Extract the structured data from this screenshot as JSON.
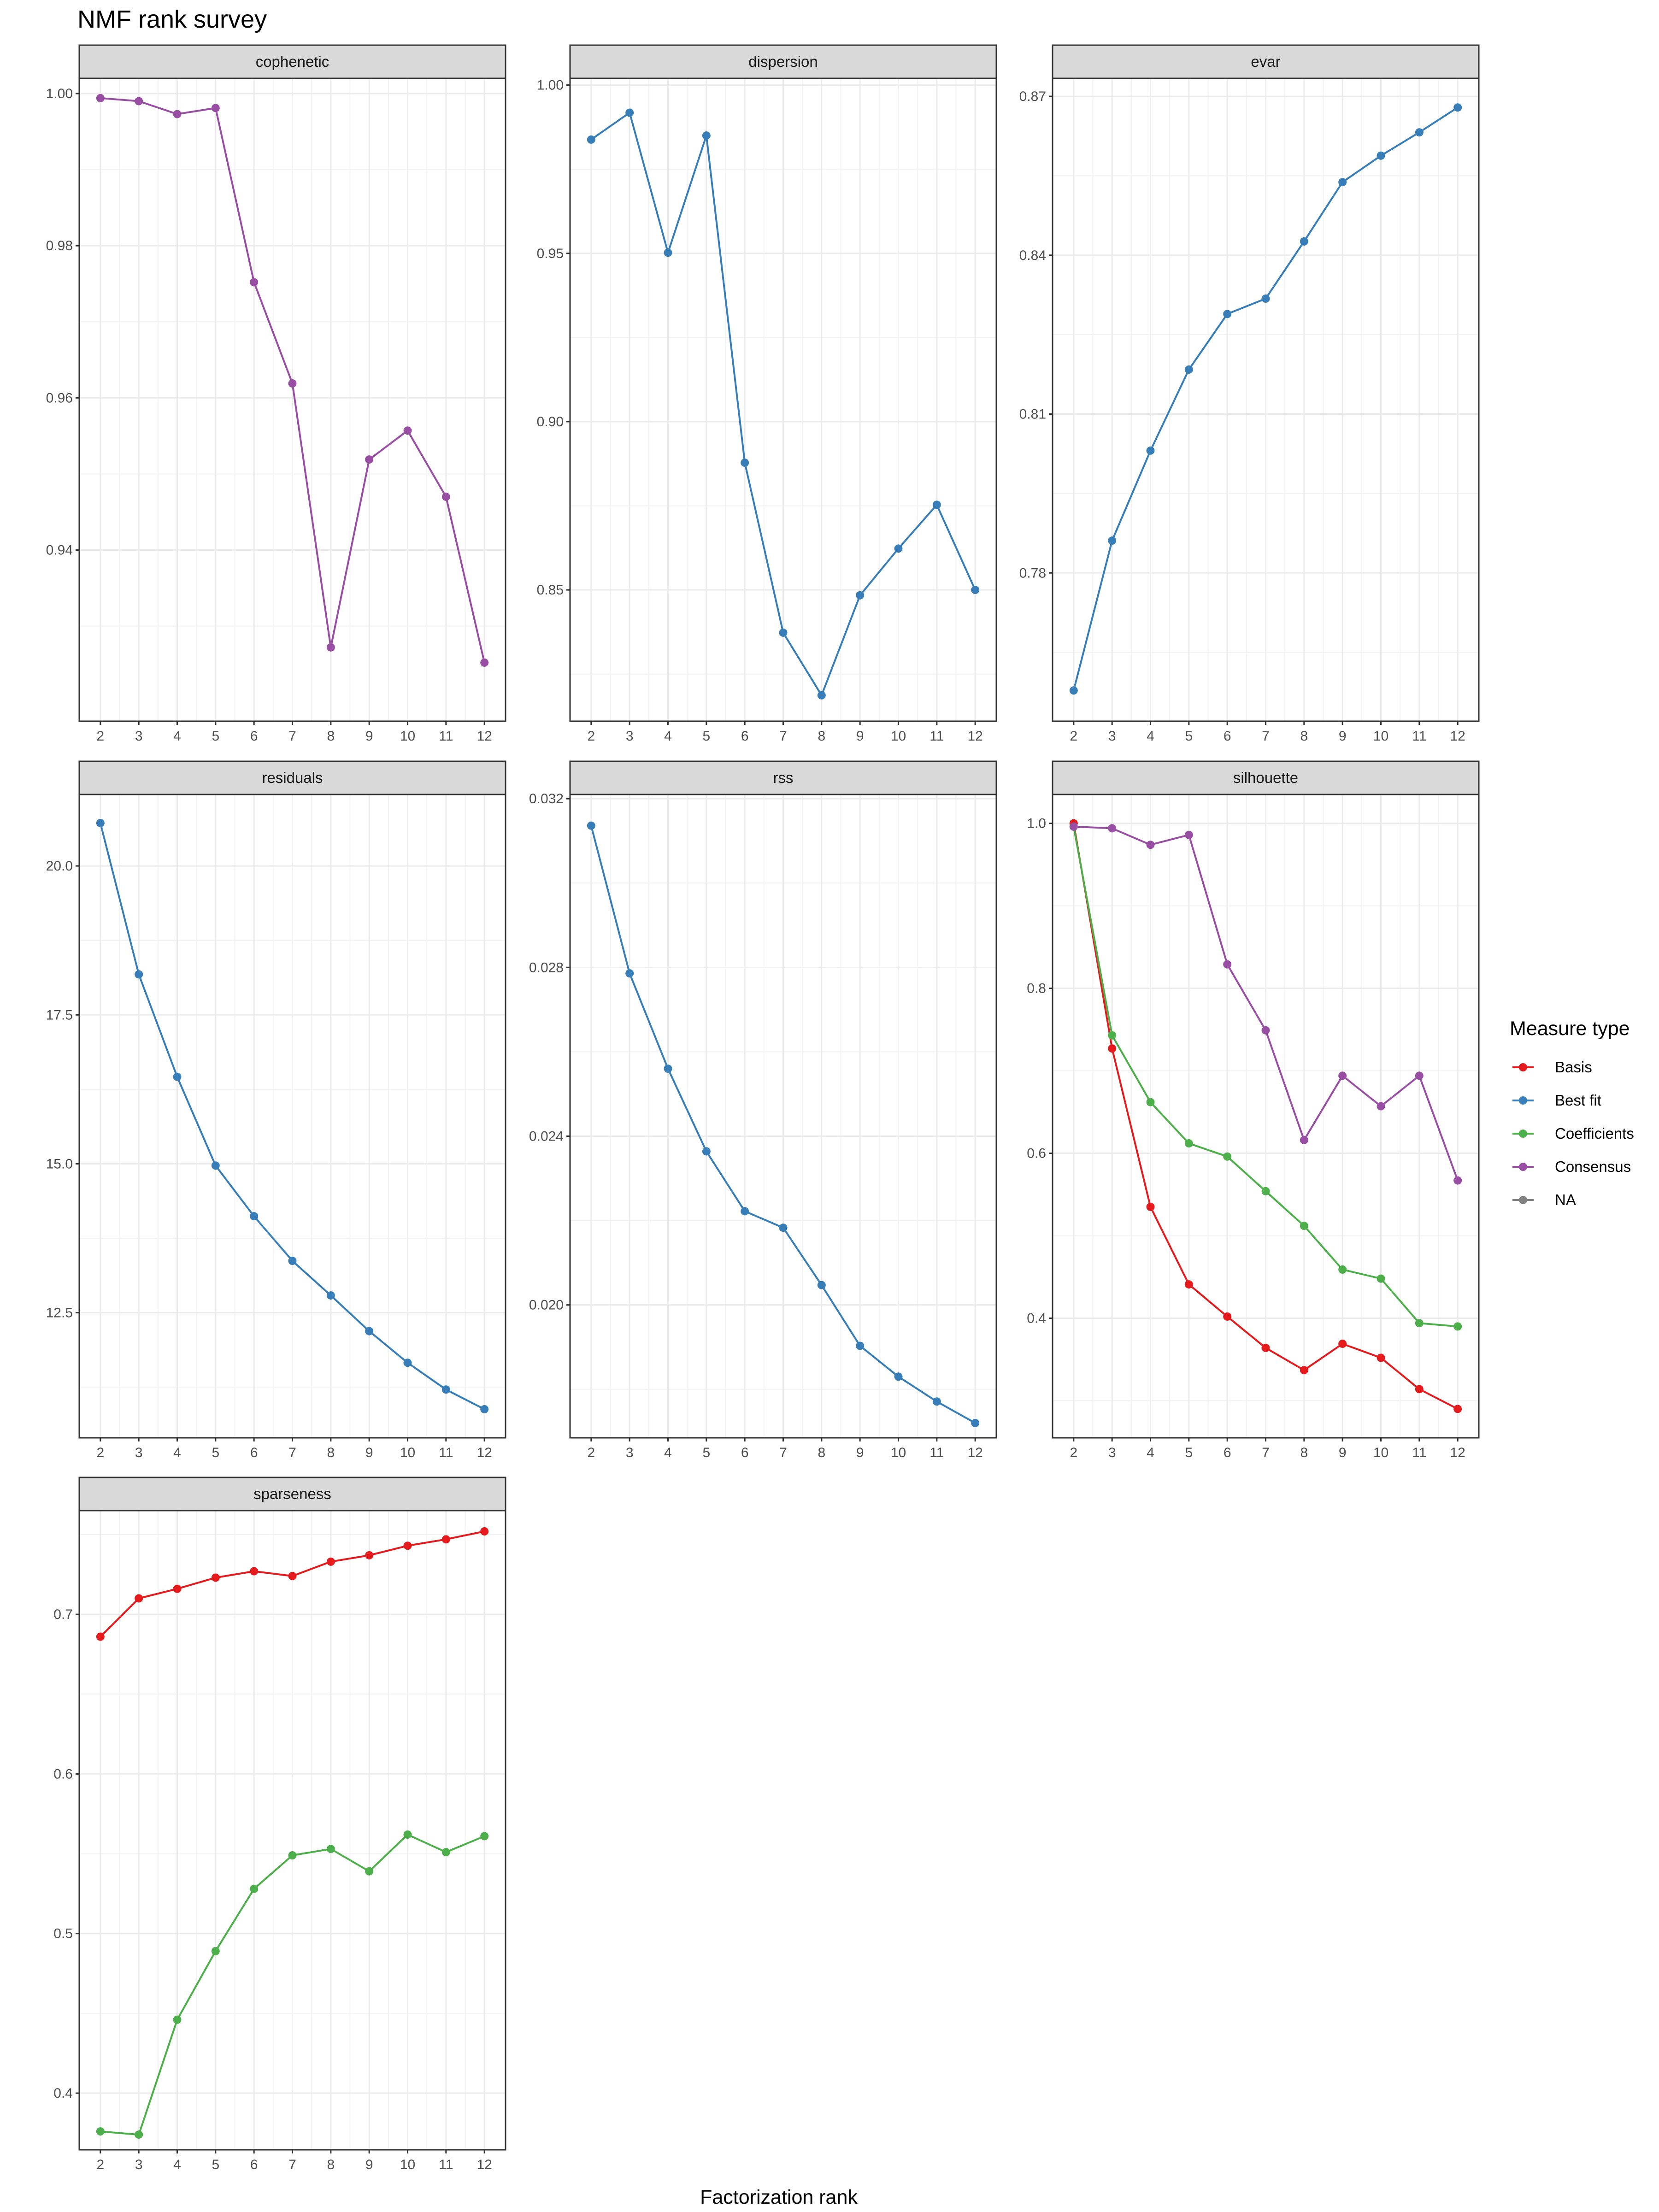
{
  "chart_data": {
    "type": "line",
    "title": "NMF rank survey",
    "xlabel": "Factorization rank",
    "ylabel": "",
    "x": [
      2,
      3,
      4,
      5,
      6,
      7,
      8,
      9,
      10,
      11,
      12
    ],
    "legend": {
      "title": "Measure type",
      "placement": "right",
      "entries": [
        {
          "name": "Basis",
          "color": "#E41A1C"
        },
        {
          "name": "Best fit",
          "color": "#377EB8"
        },
        {
          "name": "Coefficients",
          "color": "#4DAF4A"
        },
        {
          "name": "Consensus",
          "color": "#984EA3"
        },
        {
          "name": "NA",
          "color": "#808080"
        }
      ]
    },
    "grid": true,
    "panels": [
      {
        "label": "cophenetic",
        "ylim": [
          0.9175,
          1.002
        ],
        "yticks": [
          "1.00",
          "0.98",
          "0.96",
          "0.94"
        ],
        "ytick_values": [
          1.0,
          0.98,
          0.96,
          0.94
        ],
        "series": [
          {
            "type": "Consensus",
            "color": "#984EA3",
            "values": [
              0.9994,
              0.999,
              0.9973,
              0.9981,
              0.9752,
              0.9619,
              0.9272,
              0.9519,
              0.9557,
              0.947,
              0.9252
            ]
          }
        ]
      },
      {
        "label": "dispersion",
        "ylim": [
          0.811,
          1.002
        ],
        "yticks": [
          "1.00",
          "0.95",
          "0.90",
          "0.85"
        ],
        "ytick_values": [
          1.0,
          0.95,
          0.9,
          0.85
        ],
        "series": [
          {
            "type": "Best fit",
            "color": "#377EB8",
            "values": [
              0.9838,
              0.9918,
              0.9502,
              0.985,
              0.8878,
              0.8373,
              0.8187,
              0.8484,
              0.8623,
              0.8753,
              0.85
            ]
          }
        ]
      },
      {
        "label": "evar",
        "ylim": [
          0.752,
          0.8734
        ],
        "yticks": [
          "0.87",
          "0.84",
          "0.81",
          "0.78"
        ],
        "ytick_values": [
          0.87,
          0.84,
          0.81,
          0.78
        ],
        "series": [
          {
            "type": "Best fit",
            "color": "#377EB8",
            "values": [
              0.7578,
              0.7861,
              0.8031,
              0.8184,
              0.8289,
              0.8318,
              0.8426,
              0.8538,
              0.8588,
              0.8632,
              0.8679
            ]
          }
        ]
      },
      {
        "label": "residuals",
        "ylim": [
          10.4,
          21.2
        ],
        "yticks": [
          "20.0",
          "17.5",
          "15.0",
          "12.5"
        ],
        "ytick_values": [
          20.0,
          17.5,
          15.0,
          12.5
        ],
        "series": [
          {
            "type": "Best fit",
            "color": "#377EB8",
            "values": [
              20.72,
              18.18,
              16.46,
              14.97,
              14.12,
              13.37,
              12.79,
              12.19,
              11.66,
              11.21,
              10.88
            ]
          }
        ]
      },
      {
        "label": "rss",
        "ylim": [
          0.01685,
          0.0321
        ],
        "yticks": [
          "0.032",
          "0.028",
          "0.024",
          "0.020"
        ],
        "ytick_values": [
          0.032,
          0.028,
          0.024,
          0.02
        ],
        "series": [
          {
            "type": "Best fit",
            "color": "#377EB8",
            "values": [
              0.03136,
              0.02786,
              0.0256,
              0.02364,
              0.02222,
              0.02183,
              0.02047,
              0.01903,
              0.0183,
              0.01771,
              0.0172
            ]
          }
        ]
      },
      {
        "label": "silhouette",
        "ylim": [
          0.255,
          1.035
        ],
        "yticks": [
          "1.0",
          "0.8",
          "0.6",
          "0.4"
        ],
        "ytick_values": [
          1.0,
          0.8,
          0.6,
          0.4
        ],
        "series": [
          {
            "type": "Basis",
            "color": "#E41A1C",
            "values": [
              1.0,
              0.727,
              0.535,
              0.441,
              0.402,
              0.364,
              0.337,
              0.369,
              0.352,
              0.314,
              0.29
            ]
          },
          {
            "type": "Coefficients",
            "color": "#4DAF4A",
            "values": [
              0.996,
              0.743,
              0.662,
              0.612,
              0.596,
              0.554,
              0.512,
              0.459,
              0.448,
              0.394,
              0.39
            ]
          },
          {
            "type": "Consensus",
            "color": "#984EA3",
            "values": [
              0.996,
              0.994,
              0.974,
              0.986,
              0.829,
              0.749,
              0.616,
              0.694,
              0.657,
              0.694,
              0.567
            ]
          }
        ]
      },
      {
        "label": "sparseness",
        "ylim": [
          0.3645,
          0.765
        ],
        "yticks": [
          "0.7",
          "0.6",
          "0.5",
          "0.4"
        ],
        "ytick_values": [
          0.7,
          0.6,
          0.5,
          0.4
        ],
        "series": [
          {
            "type": "Basis",
            "color": "#E41A1C",
            "values": [
              0.686,
              0.71,
              0.716,
              0.723,
              0.727,
              0.724,
              0.733,
              0.737,
              0.743,
              0.747,
              0.752
            ]
          },
          {
            "type": "Coefficients",
            "color": "#4DAF4A",
            "values": [
              0.376,
              0.374,
              0.446,
              0.489,
              0.528,
              0.549,
              0.553,
              0.539,
              0.562,
              0.551,
              0.561
            ]
          }
        ]
      }
    ]
  }
}
